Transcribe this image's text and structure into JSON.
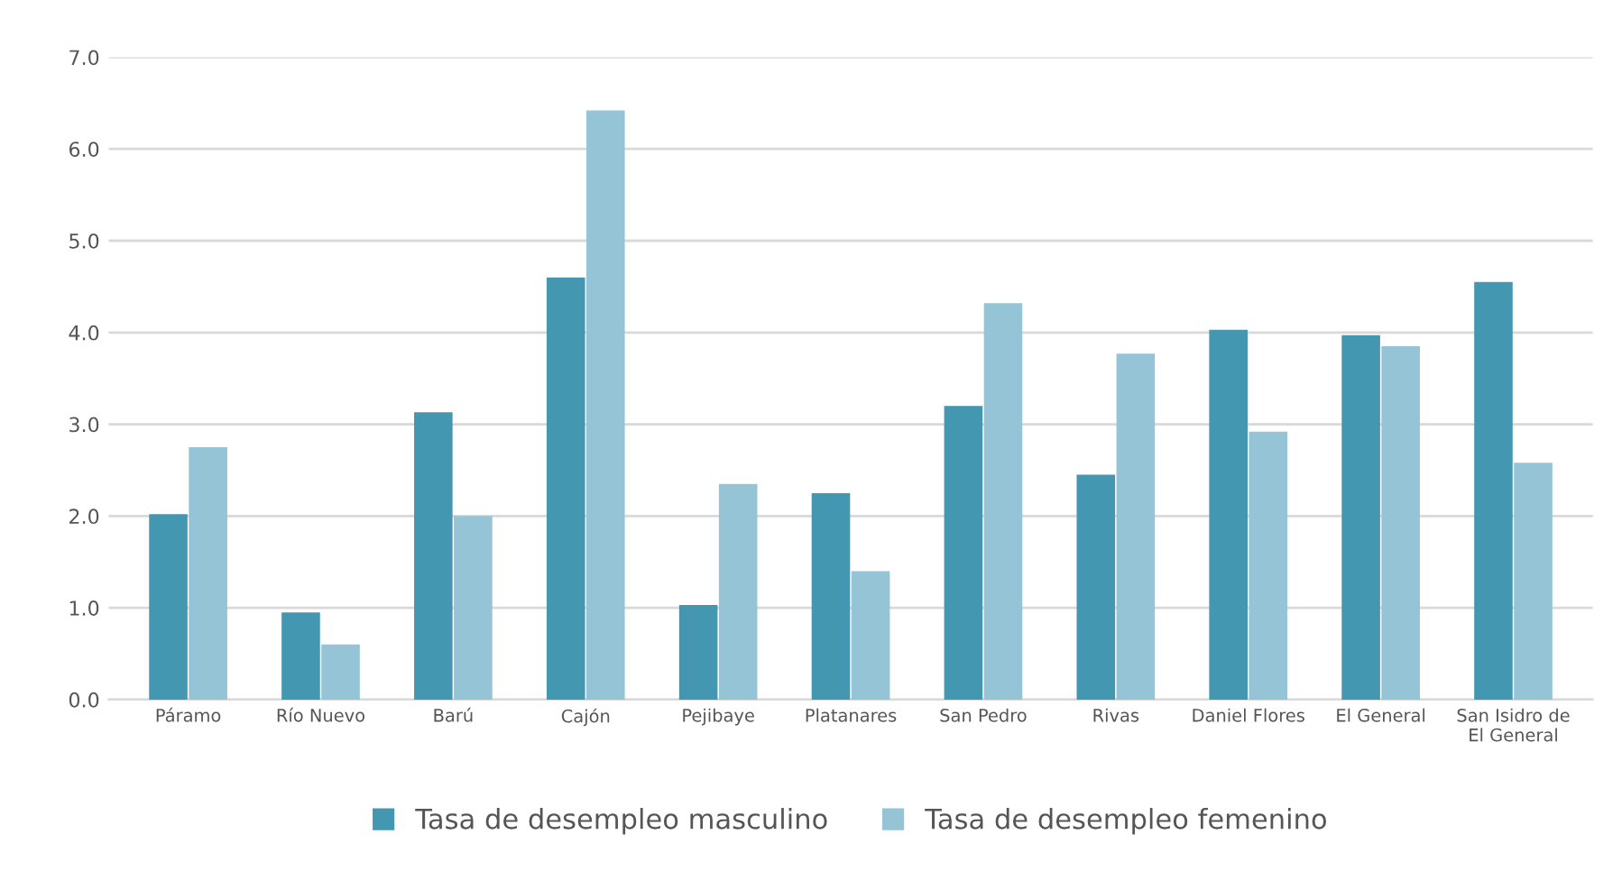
{
  "chart_data": {
    "type": "bar",
    "categories": [
      "Páramo",
      "Río Nuevo",
      "Barú",
      "Cajón",
      "Pejibaye",
      "Platanares",
      "San Pedro",
      "Rivas",
      "Daniel Flores",
      "El General",
      "San Isidro de\nEl General"
    ],
    "series": [
      {
        "name": "Tasa de desempleo masculino",
        "color": "#4397b0",
        "values": [
          2.02,
          0.95,
          3.13,
          4.6,
          1.03,
          2.25,
          3.2,
          2.45,
          4.03,
          3.97,
          4.55
        ]
      },
      {
        "name": "Tasa de desempleo femenino",
        "color": "#94c4d6",
        "values": [
          2.75,
          0.6,
          2.0,
          6.42,
          2.35,
          1.4,
          4.32,
          3.77,
          2.92,
          3.85,
          2.58
        ]
      }
    ],
    "ylim": [
      0,
      7
    ],
    "yticks": [
      {
        "value": 0,
        "label": "0.0"
      },
      {
        "value": 1,
        "label": "1.0"
      },
      {
        "value": 2,
        "label": "2.0"
      },
      {
        "value": 3,
        "label": "3.0"
      },
      {
        "value": 4,
        "label": "4.0"
      },
      {
        "value": 5,
        "label": "5.0"
      },
      {
        "value": 6,
        "label": "6.0"
      },
      {
        "value": 7,
        "label": "7.0"
      }
    ],
    "grid": "y",
    "legend": "bottom"
  }
}
